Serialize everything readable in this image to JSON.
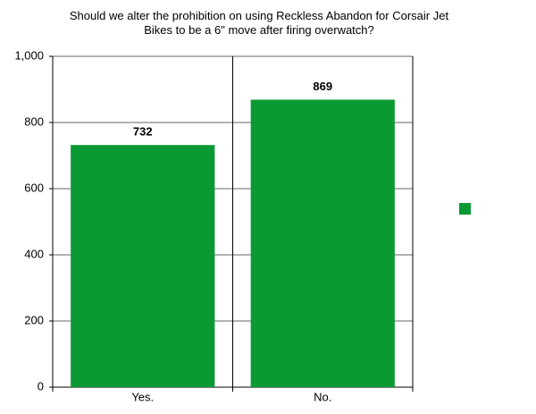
{
  "chart_data": {
    "type": "bar",
    "title": "Should we alter the prohibition on using Reckless Abandon for Corsair Jet Bikes to be a 6\" move after firing overwatch?",
    "categories": [
      "Yes.",
      "No."
    ],
    "values": [
      732,
      869
    ],
    "color": "#0a9a34",
    "ylim": [
      0,
      1000
    ],
    "yticks": [
      0,
      200,
      400,
      600,
      800,
      {
        "value": 1000,
        "label": "1,000"
      }
    ],
    "grid": true
  }
}
